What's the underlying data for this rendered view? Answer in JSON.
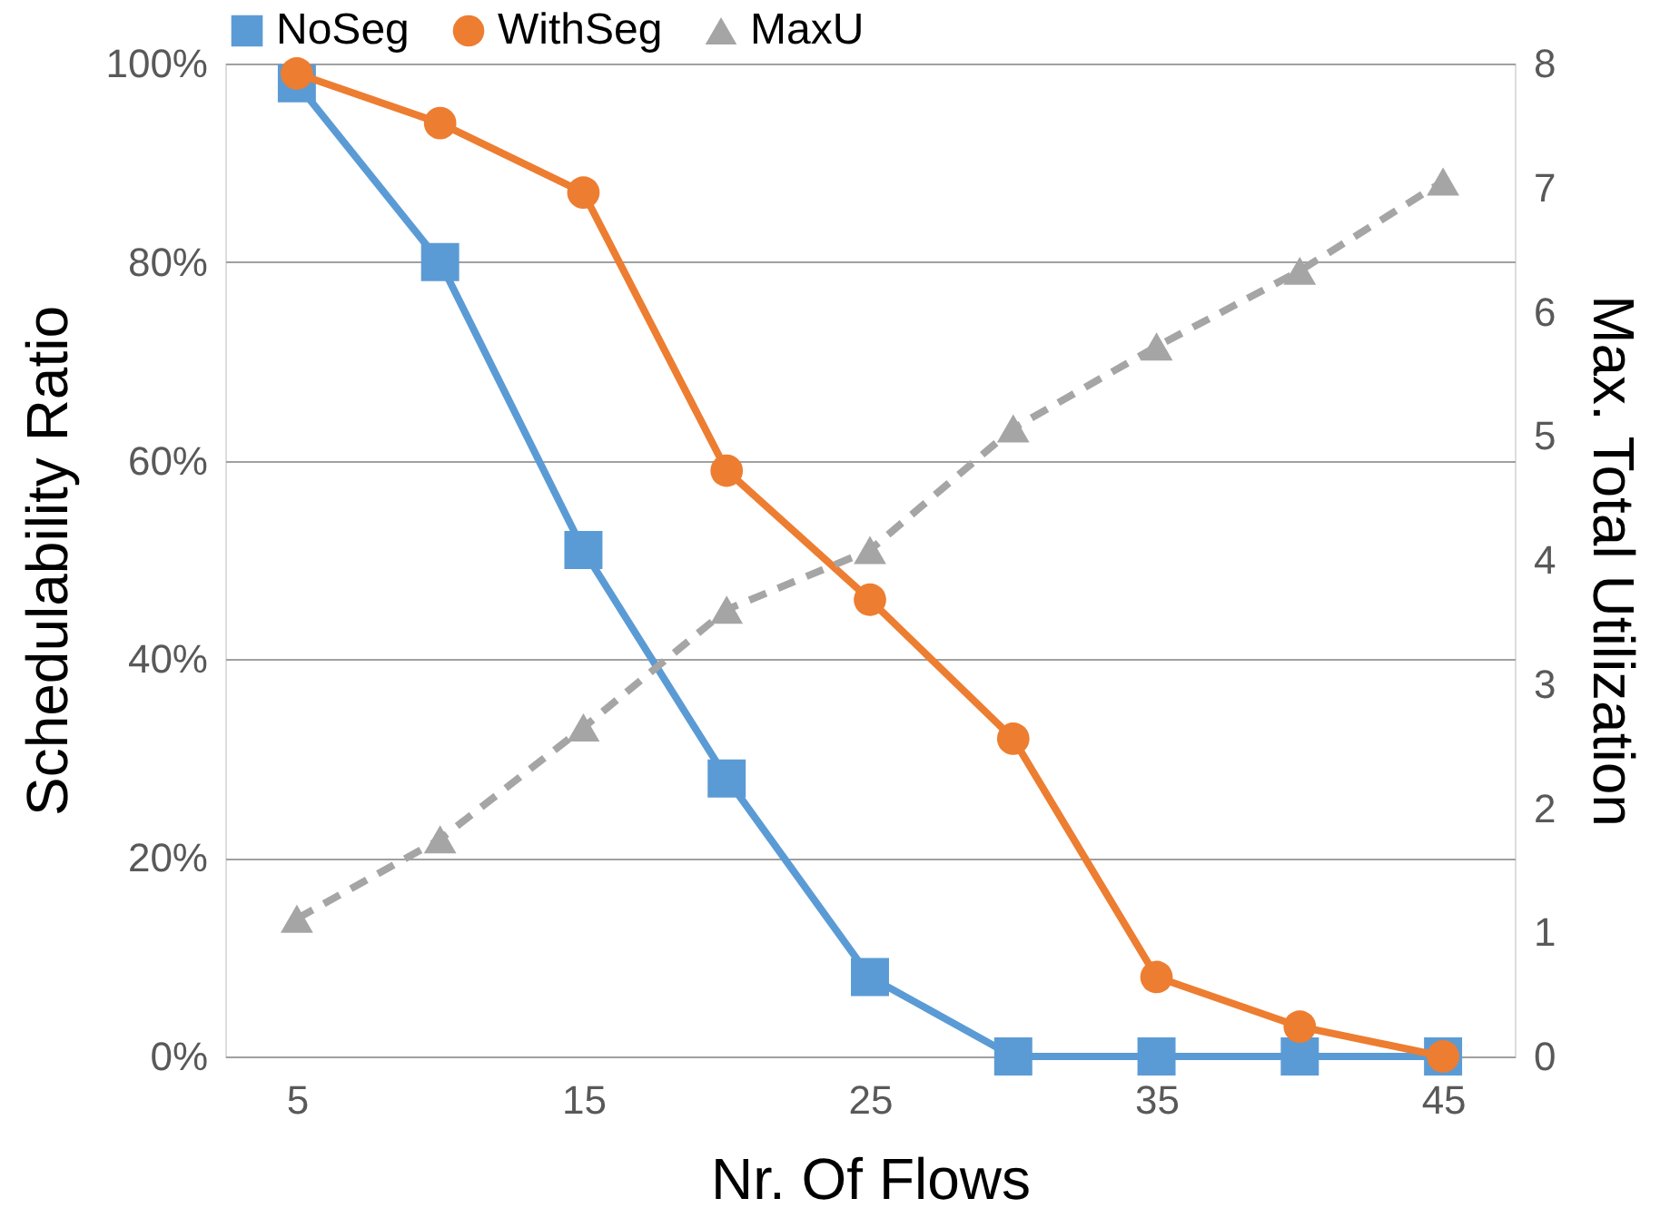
{
  "chart_data": {
    "type": "line",
    "xlabel": "Nr. Of Flows",
    "ylabel": "Schedulability Ratio",
    "y2label": "Max. Total Utilization",
    "x": [
      5,
      10,
      15,
      20,
      25,
      30,
      35,
      40,
      45
    ],
    "xlim": [
      2.5,
      47.5
    ],
    "xticks": [
      5,
      15,
      25,
      35,
      45
    ],
    "ylim": [
      0,
      100
    ],
    "yticks": [
      {
        "value": 0,
        "label": "0%"
      },
      {
        "value": 20,
        "label": "20%"
      },
      {
        "value": 40,
        "label": "40%"
      },
      {
        "value": 60,
        "label": "60%"
      },
      {
        "value": 80,
        "label": "80%"
      },
      {
        "value": 100,
        "label": "100%"
      }
    ],
    "y2lim": [
      0,
      8
    ],
    "y2ticks": [
      0,
      1,
      2,
      3,
      4,
      5,
      6,
      7,
      8
    ],
    "grid": "y",
    "legend": "top",
    "series": [
      {
        "name": "NoSeg",
        "color": "#5b9bd5",
        "marker": "square",
        "line_style": "solid",
        "values": [
          98,
          80,
          51,
          28,
          8,
          0,
          0,
          0,
          0
        ]
      },
      {
        "name": "WithSeg",
        "color": "#ed7d31",
        "marker": "circle",
        "line_style": "solid",
        "values": [
          99,
          94,
          87,
          59,
          46,
          32,
          8,
          3,
          0
        ]
      },
      {
        "name": "MaxU",
        "color": "#a5a5a5",
        "marker": "triangle",
        "line_style": "dashed",
        "axis": "y2",
        "values": [
          1.11,
          1.75,
          2.65,
          3.6,
          4.08,
          5.06,
          5.72,
          6.33,
          7.05
        ]
      }
    ]
  }
}
